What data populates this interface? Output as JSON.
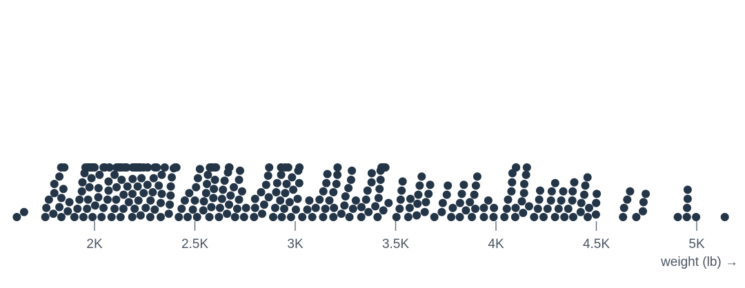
{
  "chart_data": {
    "type": "scatter",
    "subtype": "beeswarm",
    "xlabel": "weight (lb) →",
    "xlim": [
      1580,
      5200
    ],
    "ticks": [
      {
        "value": 2000,
        "label": "2K"
      },
      {
        "value": 2500,
        "label": "2.5K"
      },
      {
        "value": 3000,
        "label": "3K"
      },
      {
        "value": 3500,
        "label": "3.5K"
      },
      {
        "value": 4000,
        "label": "4K"
      },
      {
        "value": 4500,
        "label": "4.5K"
      },
      {
        "value": 5000,
        "label": "5K"
      }
    ],
    "grid": false,
    "legend": "none",
    "colors": {
      "dot": "#233547",
      "axis": "#6b7280",
      "text": "#4b5563"
    },
    "series": [
      {
        "values": [
          1613,
          1649,
          1755,
          1760,
          1773,
          1795,
          1800,
          1800,
          1825,
          1825,
          1834,
          1835,
          1835,
          1836,
          1845,
          1850,
          1867,
          1875,
          1900,
          1915,
          1925,
          1937,
          1940,
          1945,
          1950,
          1955,
          1963,
          1965,
          1968,
          1970,
          1975,
          1978,
          1980,
          1985,
          1985,
          1985,
          1990,
          1990,
          1995,
          1995,
          2000,
          2000,
          2003,
          2019,
          2020,
          2025,
          2035,
          2045,
          2045,
          2050,
          2050,
          2051,
          2065,
          2070,
          2070,
          2074,
          2075,
          2085,
          2100,
          2100,
          2108,
          2110,
          2110,
          2120,
          2123,
          2125,
          2125,
          2126,
          2130,
          2130,
          2130,
          2135,
          2135,
          2144,
          2145,
          2150,
          2155,
          2155,
          2160,
          2164,
          2171,
          2188,
          2189,
          2190,
          2190,
          2200,
          2200,
          2202,
          2205,
          2210,
          2215,
          2215,
          2219,
          2220,
          2220,
          2223,
          2226,
          2228,
          2228,
          2230,
          2230,
          2234,
          2245,
          2245,
          2255,
          2264,
          2265,
          2265,
          2278,
          2279,
          2290,
          2295,
          2300,
          2300,
          2310,
          2320,
          2330,
          2330,
          2335,
          2335,
          2350,
          2370,
          2375,
          2379,
          2380,
          2385,
          2395,
          2401,
          2405,
          2408,
          2420,
          2434,
          2450,
          2464,
          2472,
          2490,
          2500,
          2506,
          2511,
          2515,
          2525,
          2542,
          2545,
          2556,
          2560,
          2565,
          2572,
          2575,
          2582,
          2585,
          2587,
          2592,
          2595,
          2600,
          2600,
          2605,
          2620,
          2625,
          2635,
          2640,
          2648,
          2660,
          2665,
          2670,
          2670,
          2670,
          2672,
          2678,
          2694,
          2700,
          2711,
          2720,
          2720,
          2725,
          2735,
          2745,
          2755,
          2795,
          2800,
          2800,
          2830,
          2835,
          2845,
          2855,
          2865,
          2868,
          2870,
          2890,
          2900,
          2905,
          2910,
          2925,
          2930,
          2930,
          2930,
          2933,
          2945,
          2950,
          2950,
          2957,
          2965,
          2972,
          2979,
          2984,
          2990,
          3003,
          3012,
          3015,
          3020,
          3021,
          3035,
          3060,
          3070,
          3085,
          3102,
          3121,
          3139,
          3140,
          3150,
          3155,
          3160,
          3170,
          3190,
          3190,
          3193,
          3205,
          3210,
          3211,
          3230,
          3245,
          3250,
          3265,
          3270,
          3278,
          3282,
          3288,
          3302,
          3329,
          3330,
          3353,
          3360,
          3365,
          3380,
          3381,
          3399,
          3410,
          3415,
          3420,
          3425,
          3425,
          3430,
          3432,
          3433,
          3439,
          3440,
          3445,
          3445,
          3449,
          3465,
          3504,
          3520,
          3525,
          3530,
          3535,
          3563,
          3570,
          3574,
          3605,
          3609,
          3613,
          3620,
          3630,
          3645,
          3651,
          3664,
          3672,
          3693,
          3730,
          3735,
          3755,
          3760,
          3777,
          3785,
          3820,
          3821,
          3830,
          3840,
          3850,
          3870,
          3880,
          3892,
          3897,
          3900,
          3907,
          3940,
          3940,
          3962,
          3988,
          3990,
          4042,
          4054,
          4060,
          4077,
          4080,
          4082,
          4096,
          4098,
          4100,
          4100,
          4129,
          4135,
          4140,
          4141,
          4150,
          4154,
          4165,
          4190,
          4209,
          4215,
          4220,
          4237,
          4257,
          4274,
          4278,
          4294,
          4295,
          4312,
          4325,
          4335,
          4341,
          4360,
          4380,
          4382,
          4385,
          4390,
          4422,
          4425,
          4440,
          4445,
          4456,
          4457,
          4464,
          4498,
          4499,
          4502,
          4633,
          4638,
          4654,
          4668,
          4699,
          4732,
          4735,
          4746,
          4906,
          4951,
          4952,
          4955,
          4955,
          4997,
          5140
        ]
      }
    ]
  }
}
